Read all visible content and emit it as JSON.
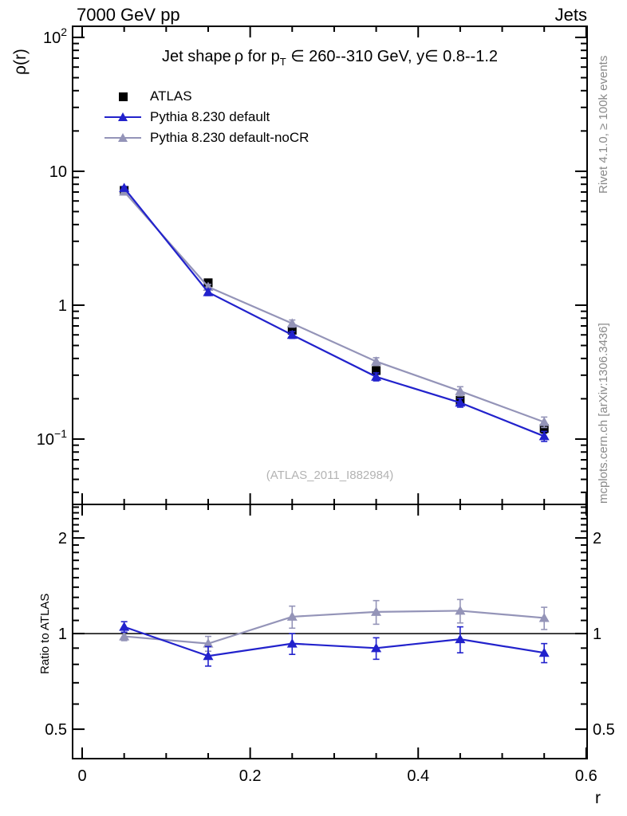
{
  "header": {
    "left_label": "7000 GeV pp",
    "right_label": "Jets"
  },
  "side_notes": {
    "top_rotated": "Rivet 4.1.0, ≥ 100k events",
    "bottom_rotated": "mcplots.cern.ch [arXiv:1306.3436]"
  },
  "title": {
    "text_before_sub": "Jet shape ρ for p",
    "sub": "T",
    "text_after_sub": " ∈ 260--310 GeV, y∈ 0.8--1.2"
  },
  "watermark": "(ATLAS_2011_I882984)",
  "legend": {
    "items": [
      {
        "label": "ATLAS",
        "marker": "square",
        "color": "#000000"
      },
      {
        "label": "Pythia 8.230 default",
        "marker": "triangle-line",
        "color": "#2222cc"
      },
      {
        "label": "Pythia 8.230 default-noCR",
        "marker": "triangle-line",
        "color": "#9494b8"
      }
    ]
  },
  "axes": {
    "x_label": "r",
    "y_label_main": "ρ(r)",
    "y_label_ratio": "Ratio to ATLAS"
  },
  "chart_data": {
    "type": "line",
    "title": "Jet shape rho for pT in 260--310 GeV, y in 0.8--1.2",
    "xlabel": "r",
    "xlim": [
      -0.0114,
      0.6011
    ],
    "x": [
      0.05,
      0.15,
      0.25,
      0.35,
      0.45,
      0.55
    ],
    "x_ticks_major": [
      {
        "v": 0,
        "label": "0"
      },
      {
        "v": 0.2,
        "label": "0.2"
      },
      {
        "v": 0.4,
        "label": "0.4"
      },
      {
        "v": 0.6,
        "label": "0.6"
      }
    ],
    "x_ticks_minor": [
      0.05,
      0.1,
      0.15,
      0.25,
      0.3,
      0.35,
      0.45,
      0.5,
      0.55
    ],
    "panels": [
      {
        "name": "main",
        "yscale": "log",
        "ylabel": "ρ(r)",
        "ylim": [
          0.0325,
          121
        ],
        "y_ticks_major": [
          {
            "v": 100,
            "base": "10",
            "exp": "2"
          },
          {
            "v": 10,
            "base": "10"
          },
          {
            "v": 1,
            "base": "1"
          },
          {
            "v": 0.1,
            "base": "10",
            "exp": "−1"
          }
        ],
        "series": [
          {
            "name": "ATLAS",
            "color": "#000000",
            "marker": "square",
            "line": false,
            "values": [
              7.2,
              1.47,
              0.65,
              0.325,
              0.195,
              0.12
            ],
            "yerr": [
              0.3,
              0.07,
              0.03,
              0.018,
              0.012,
              0.009
            ]
          },
          {
            "name": "Pythia 8.230 default-noCR",
            "color": "#9494b8",
            "marker": "triangle",
            "line": true,
            "values": [
              7.05,
              1.37,
              0.73,
              0.38,
              0.228,
              0.134
            ],
            "yerr": [
              0.18,
              0.06,
              0.045,
              0.025,
              0.018,
              0.012
            ]
          },
          {
            "name": "Pythia 8.230 default",
            "color": "#2222cc",
            "marker": "triangle",
            "line": true,
            "values": [
              7.5,
              1.25,
              0.6,
              0.292,
              0.187,
              0.105
            ],
            "yerr": [
              0.2,
              0.07,
              0.035,
              0.02,
              0.014,
              0.009
            ]
          }
        ]
      },
      {
        "name": "ratio",
        "yscale": "log",
        "ylabel": "Ratio to ATLAS",
        "ylim": [
          0.404,
          2.55
        ],
        "ref_line": 1,
        "y_ticks_major": [
          {
            "v": 2,
            "base": "2"
          },
          {
            "v": 1,
            "base": "1"
          },
          {
            "v": 0.5,
            "base": "0.5"
          }
        ],
        "labels_both_sides": true,
        "series": [
          {
            "name": "Pythia 8.230 default-noCR / ATLAS",
            "color": "#9494b8",
            "marker": "triangle",
            "line": true,
            "values": [
              0.98,
              0.93,
              1.13,
              1.17,
              1.18,
              1.12
            ],
            "yerr": [
              0.03,
              0.05,
              0.09,
              0.1,
              0.1,
              0.09
            ]
          },
          {
            "name": "Pythia 8.230 default / ATLAS",
            "color": "#2222cc",
            "marker": "triangle",
            "line": true,
            "values": [
              1.05,
              0.85,
              0.93,
              0.9,
              0.96,
              0.87
            ],
            "yerr": [
              0.04,
              0.06,
              0.07,
              0.07,
              0.09,
              0.06
            ]
          }
        ]
      }
    ],
    "legend_position": "top-left-inside",
    "grid": false
  }
}
